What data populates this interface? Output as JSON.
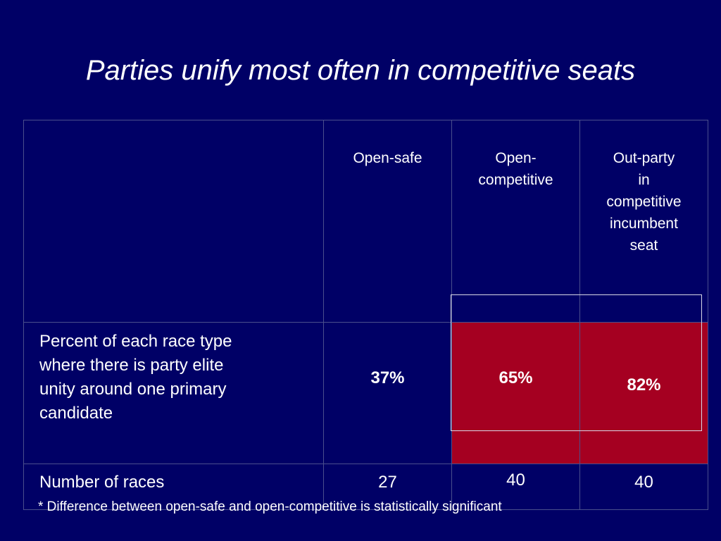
{
  "slide": {
    "title": "Parties unify most often in competitive seats",
    "footnote": "* Difference between open-safe and open-competitive is statistically significant"
  },
  "table": {
    "columns": [
      {
        "lines": [
          "Open-safe"
        ]
      },
      {
        "lines": [
          "Open-",
          "competitive"
        ]
      },
      {
        "lines": [
          "Out-party",
          "in",
          "competitive",
          "incumbent",
          "seat"
        ]
      }
    ],
    "rows": [
      {
        "label_lines": [
          "Percent of each race type",
          "where there is party elite",
          "unity around one primary",
          "candidate"
        ],
        "values": [
          "37%",
          "65%",
          "82%"
        ]
      },
      {
        "label": "Number of races",
        "values": [
          "27",
          "40",
          "40"
        ]
      }
    ]
  },
  "colors": {
    "background": "#000066",
    "highlight": "#a50021",
    "text": "#ffffff",
    "grid": "#4a4f8c"
  }
}
